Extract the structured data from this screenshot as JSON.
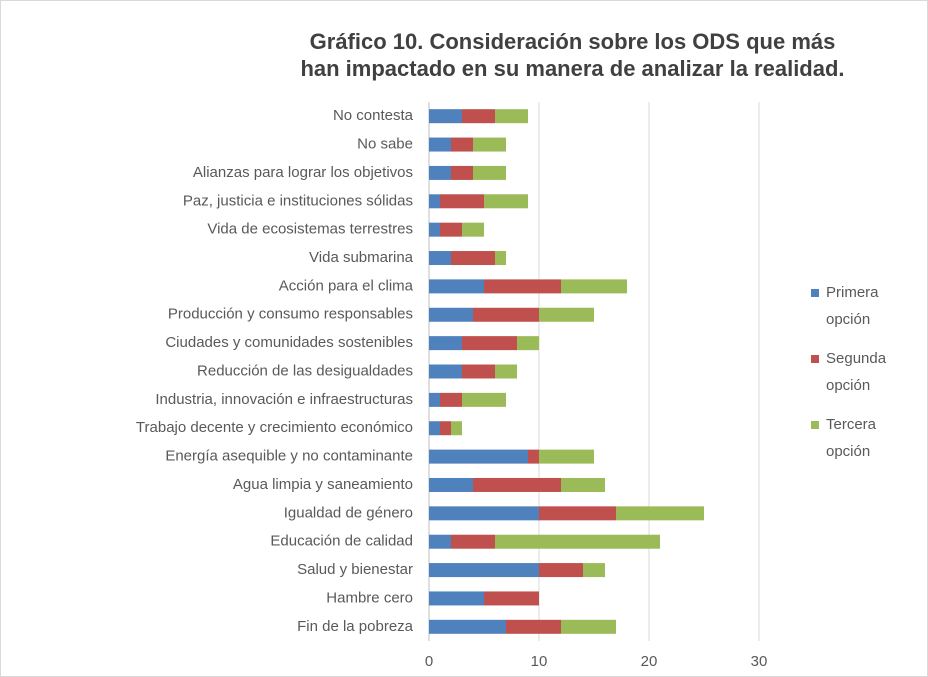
{
  "chart_data": {
    "type": "stacked-barh",
    "title": "Gráfico 10. Consideración sobre los ODS que más han impactado en su manera de analizar la realidad.",
    "categories": [
      "No contesta",
      "No sabe",
      "Alianzas para lograr los objetivos",
      "Paz, justicia e instituciones sólidas",
      "Vida de ecosistemas terrestres",
      "Vida submarina",
      "Acción para el clima",
      "Producción y consumo responsables",
      "Ciudades y comunidades sostenibles",
      "Reducción de las desigualdades",
      "Industria, innovación e infraestructuras",
      "Trabajo decente y crecimiento económico",
      "Energía asequible y no contaminante",
      "Agua limpia y saneamiento",
      "Igualdad de género",
      "Educación de calidad",
      "Salud y bienestar",
      "Hambre cero",
      "Fin de la pobreza"
    ],
    "series": [
      {
        "name": "Primera opción",
        "color": "#4f81bd",
        "values": [
          3,
          2,
          2,
          1,
          1,
          2,
          5,
          4,
          3,
          3,
          1,
          1,
          9,
          4,
          10,
          2,
          10,
          5,
          7
        ]
      },
      {
        "name": "Segunda opción",
        "color": "#c0504d",
        "values": [
          3,
          2,
          2,
          4,
          2,
          4,
          7,
          6,
          5,
          3,
          2,
          1,
          1,
          8,
          7,
          4,
          4,
          5,
          5
        ]
      },
      {
        "name": "Tercera opción",
        "color": "#9bbb59",
        "values": [
          3,
          3,
          3,
          4,
          2,
          1,
          6,
          5,
          2,
          2,
          4,
          1,
          5,
          4,
          8,
          15,
          2,
          0,
          5
        ]
      }
    ],
    "xlim": [
      0,
      30
    ],
    "xticks": [
      0,
      10,
      20,
      30
    ],
    "grid": true,
    "legend": "right"
  }
}
